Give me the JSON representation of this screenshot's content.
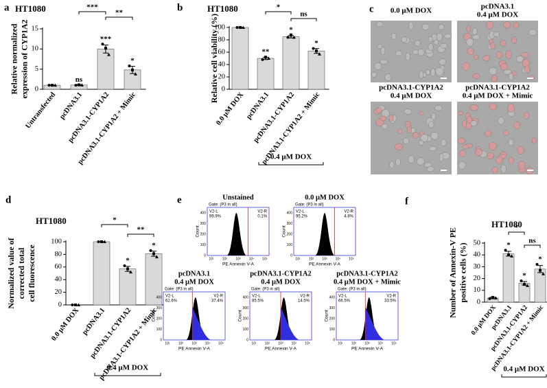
{
  "panel_labels": [
    "a",
    "b",
    "c",
    "d",
    "e",
    "f"
  ],
  "chart_data": [
    {
      "type": "bar",
      "title": "HT1080",
      "ylabel": [
        "Relative normalized",
        "expression of CYP1A2"
      ],
      "categories": [
        "Untransfected",
        "pcDNA3.1",
        "pcDNA3.1-CYP1A2",
        "pcDNA3.1-CYP1A2 + Mimic"
      ],
      "values": [
        1.0,
        1.05,
        10.0,
        4.8
      ],
      "errors": [
        0.05,
        0.1,
        1.0,
        0.9
      ],
      "points": [
        [
          1.0,
          1.0,
          1.0
        ],
        [
          1.0,
          1.1,
          1.05
        ],
        [
          11.2,
          10.2,
          8.6
        ],
        [
          5.8,
          4.8,
          3.8
        ]
      ],
      "color": "#d9d9d9",
      "ylim": [
        0,
        15
      ],
      "yticks": [
        0,
        5,
        10,
        15
      ],
      "significance": [
        null,
        "ns",
        "***",
        "*"
      ],
      "brackets": [
        {
          "from": "pcDNA3.1",
          "to": "pcDNA3.1-CYP1A2",
          "label": "***"
        },
        {
          "from": "pcDNA3.1-CYP1A2",
          "to": "pcDNA3.1-CYP1A2 + Mimic",
          "label": "**"
        }
      ]
    },
    {
      "type": "bar",
      "title": "HT1080",
      "ylabel": [
        "Relative cell viability (%)"
      ],
      "categories": [
        "0.0 μM DOX",
        "pcDNA3.1",
        "pcDNA3.1-CYP1A2",
        "pcDNA3.1-CYP1A2 + Mimic"
      ],
      "values": [
        100,
        50,
        85,
        62
      ],
      "errors": [
        0.3,
        2,
        2,
        4
      ],
      "points": [
        [
          100,
          100,
          100
        ],
        [
          48,
          52,
          50
        ],
        [
          84,
          88,
          84
        ],
        [
          66,
          62,
          57
        ]
      ],
      "color": "#d9d9d9",
      "ylim": [
        0,
        100
      ],
      "yticks": [
        0,
        20,
        40,
        60,
        80,
        100
      ],
      "significance": [
        null,
        "**",
        "*",
        "*"
      ],
      "brackets": [
        {
          "from": "pcDNA3.1",
          "to": "pcDNA3.1-CYP1A2",
          "label": "*"
        },
        {
          "from": "pcDNA3.1-CYP1A2",
          "to": "pcDNA3.1-CYP1A2 + Mimic",
          "label": "ns"
        }
      ],
      "group": {
        "label": "0.4 μM DOX",
        "from": "pcDNA3.1",
        "to": "pcDNA3.1-CYP1A2 + Mimic"
      }
    },
    {
      "type": "bar",
      "title": "HT1080",
      "ylabel": [
        "Normalized value of",
        "corrected total",
        "cell fluorescence"
      ],
      "categories": [
        "0.0 μM DOX",
        "pcDNA3.1",
        "pcDNA3.1-CYP1A2",
        "pcDNA3.1-CYP1A2 + Mimic"
      ],
      "values": [
        0,
        100,
        57,
        81
      ],
      "errors": [
        0,
        0.3,
        4,
        4
      ],
      "points": [
        [
          0,
          0,
          0
        ],
        [
          100,
          100,
          100
        ],
        [
          62,
          57,
          52
        ],
        [
          86,
          81,
          76
        ]
      ],
      "color": "#d9d9d9",
      "ylim": [
        0,
        100
      ],
      "yticks": [
        0,
        20,
        40,
        60,
        80,
        100
      ],
      "significance": [
        null,
        null,
        "*",
        "*"
      ],
      "brackets": [
        {
          "from": "pcDNA3.1",
          "to": "pcDNA3.1-CYP1A2",
          "label": "*"
        },
        {
          "from": "pcDNA3.1-CYP1A2",
          "to": "pcDNA3.1-CYP1A2 + Mimic",
          "label": "**"
        }
      ],
      "group": {
        "label": "0.4 μM DOX",
        "from": "pcDNA3.1",
        "to": "pcDNA3.1-CYP1A2 + Mimic"
      }
    },
    {
      "type": "bar",
      "title": "HT1080",
      "ylabel": [
        "Number of Annexin-V PE",
        "positive cells (%)"
      ],
      "categories": [
        "0.0 μM DOX",
        "pcDNA3.1",
        "pcDNA3.1-CYP1A2",
        "pcDNA3.1-CYP1A2 + Mimic"
      ],
      "values": [
        3.5,
        41,
        16,
        28
      ],
      "errors": [
        0.7,
        2,
        1.5,
        3
      ],
      "points": [
        [
          3,
          4,
          3.5
        ],
        [
          44,
          40,
          39
        ],
        [
          18,
          15,
          14
        ],
        [
          32,
          27,
          24
        ]
      ],
      "color": "#d9d9d9",
      "ylim": [
        0,
        50
      ],
      "yticks": [
        0,
        10,
        20,
        30,
        40,
        50
      ],
      "significance": [
        null,
        "*",
        "*",
        "*"
      ],
      "brackets": [
        {
          "from": "pcDNA3.1",
          "to": "pcDNA3.1-CYP1A2",
          "label": "*"
        },
        {
          "from": "pcDNA3.1-CYP1A2",
          "to": "pcDNA3.1-CYP1A2 + Mimic",
          "label": "ns"
        }
      ],
      "group": {
        "label": "0.4 μM DOX",
        "from": "pcDNA3.1",
        "to": "pcDNA3.1-CYP1A2 + Mimic"
      }
    }
  ],
  "microscopy": {
    "captions": [
      [
        "0.0 μM DOX"
      ],
      [
        "pcDNA3.1",
        "0.4 μM DOX"
      ],
      [
        "pcDNA3.1-CYP1A2",
        "0.4 μM DOX"
      ],
      [
        "pcDNA3.1-CYP1A2",
        "0.4 μM DOX + Mimic"
      ]
    ]
  },
  "flow_cytometry": {
    "gate": "Gate: (P3 in all)",
    "left_gate": "V2-L",
    "right_gate": "V2-R",
    "xlabel": "PE Annexin V-A",
    "ylabel": "Count",
    "yticks": [
      "0",
      "100",
      "200",
      "300",
      "400"
    ],
    "xticks": [
      "10¹",
      "10²",
      "10³",
      "10⁴",
      "10⁵"
    ],
    "plots": [
      {
        "title": [
          "Unstained"
        ],
        "left_pct": "99.9%",
        "right_pct": "0.1%"
      },
      {
        "title": [
          "0.0 μM DOX"
        ],
        "left_pct": "95.2%",
        "right_pct": "4.8%"
      },
      {
        "title": [
          "pcDNA3.1",
          "0.4 μM DOX"
        ],
        "left_pct": "62.6%",
        "right_pct": "37.4%"
      },
      {
        "title": [
          "pcDNA3.1-CYP1A2",
          "0.4 μM DOX"
        ],
        "left_pct": "85.5%",
        "right_pct": "14.5%"
      },
      {
        "title": [
          "pcDNA3.1-CYP1A2",
          "0.4 μM DOX + Mimic"
        ],
        "left_pct": "66.5%",
        "right_pct": "33.5%"
      }
    ]
  }
}
